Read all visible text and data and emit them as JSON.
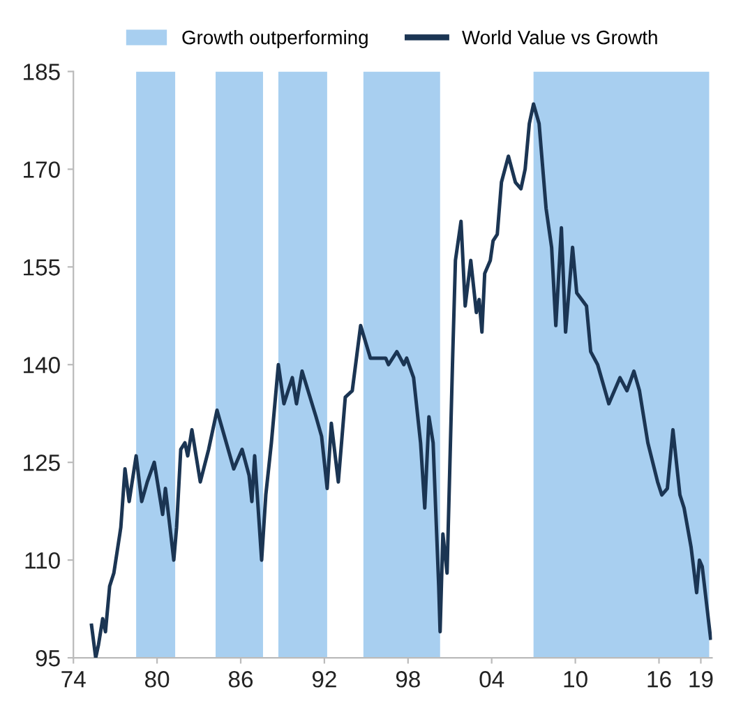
{
  "chart_data": {
    "type": "line",
    "x": [
      1975.3,
      1975.6,
      1975.8,
      1976.1,
      1976.3,
      1976.6,
      1976.9,
      1977.4,
      1977.7,
      1978.0,
      1978.5,
      1978.9,
      1979.3,
      1979.8,
      1980.4,
      1980.6,
      1981.2,
      1981.4,
      1981.7,
      1982.0,
      1982.2,
      1982.5,
      1983.1,
      1983.7,
      1984.3,
      1984.7,
      1985.5,
      1986.1,
      1986.6,
      1986.8,
      1987.0,
      1987.5,
      1987.8,
      1988.2,
      1988.7,
      1989.1,
      1989.7,
      1990.0,
      1990.4,
      1991.4,
      1991.8,
      1992.2,
      1992.5,
      1993.0,
      1993.5,
      1994.0,
      1994.6,
      1995.3,
      1995.8,
      1996.4,
      1996.6,
      1997.2,
      1997.7,
      1997.9,
      1998.4,
      1998.9,
      1999.2,
      1999.5,
      1999.8,
      2000.2,
      2000.3,
      2000.5,
      2000.8,
      2001.2,
      2001.4,
      2001.8,
      2002.1,
      2002.5,
      2002.9,
      2003.1,
      2003.3,
      2003.5,
      2003.9,
      2004.1,
      2004.4,
      2004.7,
      2005.2,
      2005.7,
      2006.1,
      2006.4,
      2006.7,
      2007.0,
      2007.4,
      2007.9,
      2008.3,
      2008.6,
      2009.0,
      2009.3,
      2009.8,
      2010.1,
      2010.8,
      2011.1,
      2011.6,
      2012.4,
      2013.2,
      2013.7,
      2014.2,
      2014.6,
      2015.2,
      2015.9,
      2016.2,
      2016.6,
      2017.0,
      2017.5,
      2017.8,
      2018.3,
      2018.7,
      2018.9,
      2019.1,
      2019.7
    ],
    "series": [
      {
        "name": "World Value vs Growth",
        "color": "#1b3553",
        "values": [
          100,
          95,
          97,
          101,
          99,
          106,
          108,
          115,
          124,
          119,
          126,
          119,
          122,
          125,
          117,
          121,
          110,
          115,
          127,
          128,
          126,
          130,
          122,
          127,
          133,
          130,
          124,
          127,
          123,
          119,
          126,
          110,
          120,
          128,
          140,
          134,
          138,
          134,
          139,
          132,
          129,
          121,
          131,
          122,
          135,
          136,
          146,
          141,
          141,
          141,
          140,
          142,
          140,
          141,
          138,
          128,
          118,
          132,
          128,
          106,
          99,
          114,
          108,
          141,
          156,
          162,
          149,
          156,
          148,
          150,
          145,
          154,
          156,
          159,
          160,
          168,
          172,
          168,
          167,
          170,
          177,
          180,
          177,
          164,
          158,
          146,
          161,
          145,
          158,
          151,
          149,
          142,
          140,
          134,
          138,
          136,
          139,
          136,
          128,
          122,
          120,
          121,
          130,
          120,
          118,
          112,
          105,
          110,
          109,
          98
        ]
      }
    ],
    "bands": [
      {
        "axis": "x",
        "from": 1978.5,
        "to": 1981.3,
        "label": "Growth outperforming",
        "color": "#a8cff0"
      },
      {
        "axis": "x",
        "from": 1984.2,
        "to": 1987.6,
        "color": "#a8cff0"
      },
      {
        "axis": "x",
        "from": 1988.7,
        "to": 1992.2,
        "color": "#a8cff0"
      },
      {
        "axis": "x",
        "from": 1994.8,
        "to": 2000.3,
        "color": "#a8cff0"
      },
      {
        "axis": "x",
        "from": 2007.0,
        "to": 2019.6,
        "color": "#a8cff0"
      }
    ],
    "xlim": [
      1974,
      2019.8
    ],
    "xticks": [
      {
        "value": 1974,
        "label": "74"
      },
      {
        "value": 1980,
        "label": "80"
      },
      {
        "value": 1986,
        "label": "86"
      },
      {
        "value": 1992,
        "label": "92"
      },
      {
        "value": 1998,
        "label": "98"
      },
      {
        "value": 2004,
        "label": "04"
      },
      {
        "value": 2010,
        "label": "10"
      },
      {
        "value": 2016,
        "label": "16"
      },
      {
        "value": 2019,
        "label": "19"
      }
    ],
    "ylim": [
      95,
      185
    ],
    "yticks": [
      95,
      110,
      125,
      140,
      155,
      170,
      185
    ],
    "grid": false,
    "legend": "top",
    "line_style": "solid",
    "marker": "none"
  }
}
